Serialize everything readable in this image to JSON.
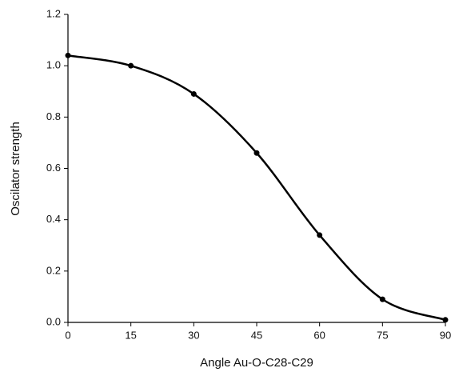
{
  "chart_data": {
    "type": "line",
    "x_label": "Angle Au-O-C28-C29",
    "y_label": "Oscilator strength",
    "x": [
      0,
      15,
      30,
      45,
      60,
      75,
      90
    ],
    "series": [
      {
        "color": "#000000",
        "values": [
          1.04,
          1.0,
          0.89,
          0.66,
          0.34,
          0.09,
          0.01
        ]
      }
    ],
    "xlim": [
      0,
      90
    ],
    "xticks": [
      0,
      15,
      30,
      45,
      60,
      75,
      90
    ],
    "ylim": [
      0,
      1.2
    ],
    "yticks": [
      {
        "value": 0,
        "label": "0.0"
      },
      {
        "value": 0.2,
        "label": "0.2"
      },
      {
        "value": 0.4,
        "label": "0.4"
      },
      {
        "value": 0.6,
        "label": "0.6"
      },
      {
        "value": 0.8,
        "label": "0.8"
      },
      {
        "value": 1.0,
        "label": "1.0"
      },
      {
        "value": 1.2,
        "label": "1.2"
      }
    ],
    "smooth": true,
    "markers": true,
    "grid": false
  }
}
